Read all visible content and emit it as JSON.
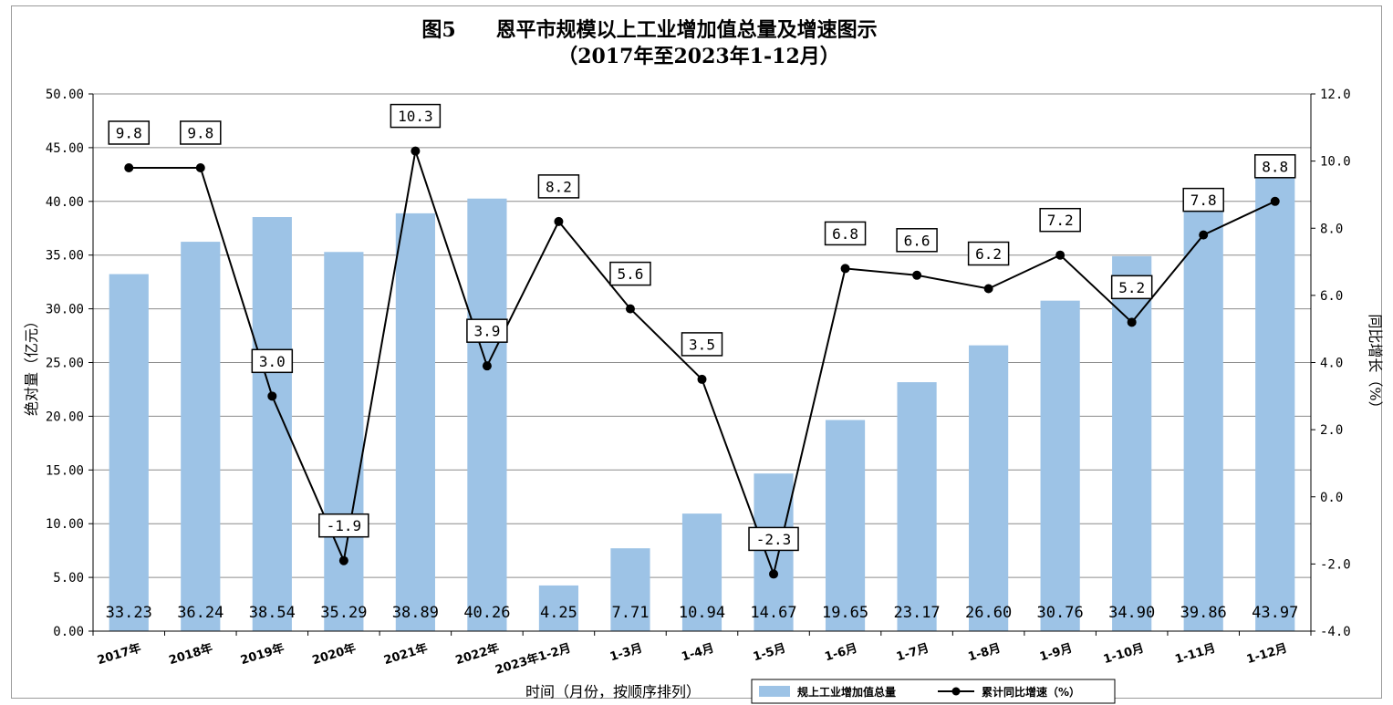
{
  "chart_data": {
    "type": "bar+line",
    "title": "图5　　恩平市规模以上工业增加值总量及增速图示",
    "subtitle": "（2017年至2023年1-12月）",
    "xlabel": "时间（月份，按顺序排列）",
    "ylabel_left": "绝对量（亿元）",
    "ylabel_right": "同比增长（%）",
    "ylim_left": [
      0,
      50
    ],
    "ylim_right": [
      -4,
      12
    ],
    "yticks_left": [
      "0.00",
      "5.00",
      "10.00",
      "15.00",
      "20.00",
      "25.00",
      "30.00",
      "35.00",
      "40.00",
      "45.00",
      "50.00"
    ],
    "yticks_right": [
      "-4.0",
      "-2.0",
      "0.0",
      "2.0",
      "4.0",
      "6.0",
      "8.0",
      "10.0",
      "12.0"
    ],
    "grid": true,
    "legend_position": "bottom",
    "categories": [
      "2017年",
      "2018年",
      "2019年",
      "2020年",
      "2021年",
      "2022年",
      "2023年1-2月",
      "1-3月",
      "1-4月",
      "1-5月",
      "1-6月",
      "1-7月",
      "1-8月",
      "1-9月",
      "1-10月",
      "1-11月",
      "1-12月"
    ],
    "series": [
      {
        "name": "规上工业增加值总量",
        "type": "bar",
        "axis": "left",
        "color": "#9dc3e6",
        "values": [
          33.23,
          36.24,
          38.54,
          35.29,
          38.89,
          40.26,
          4.25,
          7.71,
          10.94,
          14.67,
          19.65,
          23.17,
          26.6,
          30.76,
          34.9,
          39.86,
          43.97
        ],
        "labels": [
          "33.23",
          "36.24",
          "38.54",
          "35.29",
          "38.89",
          "40.26",
          "4.25",
          "7.71",
          "10.94",
          "14.67",
          "19.65",
          "23.17",
          "26.60",
          "30.76",
          "34.90",
          "39.86",
          "43.97"
        ]
      },
      {
        "name": "累计同比增速（%）",
        "type": "line",
        "axis": "right",
        "color": "#000000",
        "values": [
          9.8,
          9.8,
          3.0,
          -1.9,
          10.3,
          3.9,
          8.2,
          5.6,
          3.5,
          -2.3,
          6.8,
          6.6,
          6.2,
          7.2,
          5.2,
          7.8,
          8.8
        ],
        "labels": [
          "9.8",
          "9.8",
          "3.0",
          "-1.9",
          "10.3",
          "3.9",
          "8.2",
          "5.6",
          "3.5",
          "-2.3",
          "6.8",
          "6.6",
          "6.2",
          "7.2",
          "5.2",
          "7.8",
          "8.8"
        ]
      }
    ]
  }
}
